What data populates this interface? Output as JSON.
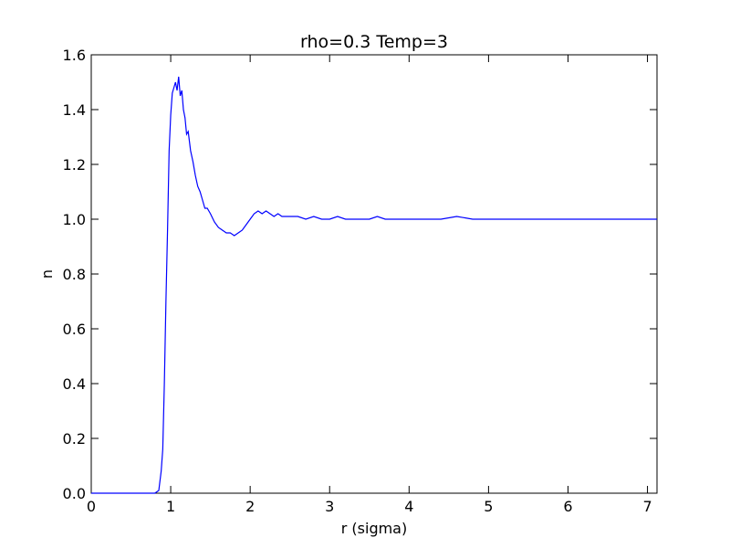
{
  "chart_data": {
    "type": "line",
    "title": "rho=0.3 Temp=3",
    "xlabel": "r (sigma)",
    "ylabel": "n",
    "xlim": [
      0,
      7.12
    ],
    "ylim": [
      0,
      1.6
    ],
    "xticks": [
      0,
      1,
      2,
      3,
      4,
      5,
      6,
      7
    ],
    "yticks": [
      0.0,
      0.2,
      0.4,
      0.6,
      0.8,
      1.0,
      1.2,
      1.4,
      1.6
    ],
    "xtick_labels": [
      "0",
      "1",
      "2",
      "3",
      "4",
      "5",
      "6",
      "7"
    ],
    "ytick_labels": [
      "0.0",
      "0.2",
      "0.4",
      "0.6",
      "0.8",
      "1.0",
      "1.2",
      "1.4",
      "1.6"
    ],
    "grid": false,
    "line_color": "#0000ff",
    "series": [
      {
        "x": [
          0,
          0.8,
          0.85,
          0.88,
          0.9,
          0.92,
          0.94,
          0.96,
          0.98,
          1.0,
          1.02,
          1.04,
          1.06,
          1.08,
          1.1,
          1.12,
          1.14,
          1.16,
          1.18,
          1.2,
          1.22,
          1.25,
          1.28,
          1.31,
          1.34,
          1.37,
          1.4,
          1.43,
          1.46,
          1.5,
          1.55,
          1.6,
          1.65,
          1.7,
          1.75,
          1.8,
          1.85,
          1.9,
          1.95,
          2.0,
          2.05,
          2.1,
          2.15,
          2.2,
          2.25,
          2.3,
          2.35,
          2.4,
          2.45,
          2.5,
          2.55,
          2.6,
          2.7,
          2.8,
          2.9,
          3.0,
          3.1,
          3.2,
          3.3,
          3.4,
          3.5,
          3.6,
          3.7,
          3.8,
          3.9,
          4.0,
          4.2,
          4.4,
          4.6,
          4.8,
          5.0,
          5.2,
          5.4,
          5.6,
          5.8,
          6.0,
          6.2,
          6.4,
          6.6,
          6.8,
          7.0,
          7.12
        ],
        "y": [
          0,
          0.0,
          0.01,
          0.08,
          0.16,
          0.4,
          0.7,
          0.96,
          1.25,
          1.38,
          1.46,
          1.48,
          1.5,
          1.47,
          1.52,
          1.45,
          1.47,
          1.4,
          1.37,
          1.31,
          1.32,
          1.25,
          1.21,
          1.16,
          1.12,
          1.1,
          1.07,
          1.04,
          1.04,
          1.02,
          0.99,
          0.97,
          0.96,
          0.95,
          0.95,
          0.94,
          0.95,
          0.96,
          0.98,
          1.0,
          1.02,
          1.03,
          1.02,
          1.03,
          1.02,
          1.01,
          1.02,
          1.01,
          1.01,
          1.01,
          1.01,
          1.01,
          1.0,
          1.01,
          1.0,
          1.0,
          1.01,
          1.0,
          1.0,
          1.0,
          1.0,
          1.01,
          1.0,
          1.0,
          1.0,
          1.0,
          1.0,
          1.0,
          1.01,
          1.0,
          1.0,
          1.0,
          1.0,
          1.0,
          1.0,
          1.0,
          1.0,
          1.0,
          1.0,
          1.0,
          1.0,
          1.0
        ]
      }
    ]
  }
}
